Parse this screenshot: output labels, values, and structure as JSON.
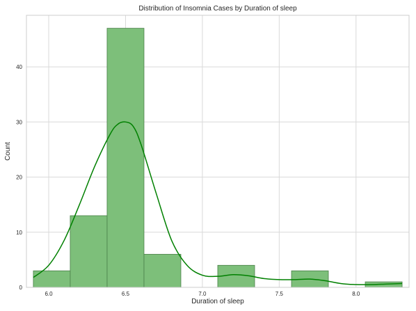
{
  "chart_data": {
    "type": "bar",
    "title": "Distribution of Insomnia Cases by Duration of sleep",
    "xlabel": "Duration of sleep",
    "ylabel": "Count",
    "xlim": [
      5.855,
      8.345
    ],
    "ylim": [
      0,
      49.35
    ],
    "x_ticks": [
      "6.0",
      "6.5",
      "7.0",
      "7.5",
      "8.0"
    ],
    "y_ticks": [
      "0",
      "10",
      "20",
      "30",
      "40"
    ],
    "grid": true,
    "bins": [
      {
        "x0": 5.9,
        "x1": 6.14,
        "count": 3
      },
      {
        "x0": 6.14,
        "x1": 6.38,
        "count": 13
      },
      {
        "x0": 6.38,
        "x1": 6.62,
        "count": 47
      },
      {
        "x0": 6.62,
        "x1": 6.86,
        "count": 6
      },
      {
        "x0": 6.86,
        "x1": 7.1,
        "count": 0
      },
      {
        "x0": 7.1,
        "x1": 7.34,
        "count": 4
      },
      {
        "x0": 7.34,
        "x1": 7.58,
        "count": 0
      },
      {
        "x0": 7.58,
        "x1": 7.82,
        "count": 3
      },
      {
        "x0": 7.82,
        "x1": 8.06,
        "count": 0
      },
      {
        "x0": 8.06,
        "x1": 8.3,
        "count": 1
      }
    ],
    "kde": {
      "x": [
        5.9,
        6.0,
        6.1,
        6.2,
        6.3,
        6.4,
        6.45,
        6.5,
        6.55,
        6.6,
        6.7,
        6.8,
        6.9,
        7.0,
        7.1,
        7.2,
        7.3,
        7.4,
        7.5,
        7.6,
        7.7,
        7.8,
        7.9,
        8.0,
        8.1,
        8.2,
        8.3
      ],
      "y": [
        1.8,
        4.0,
        8.5,
        15.0,
        22.0,
        27.8,
        29.6,
        30.0,
        29.2,
        26.0,
        17.0,
        8.5,
        4.0,
        2.2,
        2.0,
        2.3,
        2.1,
        1.6,
        1.4,
        1.4,
        1.5,
        1.2,
        0.7,
        0.5,
        0.5,
        0.6,
        0.7
      ]
    },
    "colors": {
      "bar_fill": "#7dbf7a",
      "bar_edge": "#4a7f48",
      "kde_line": "#008000",
      "grid": "#d9d9d9",
      "axes_edge": "#cccccc"
    }
  }
}
